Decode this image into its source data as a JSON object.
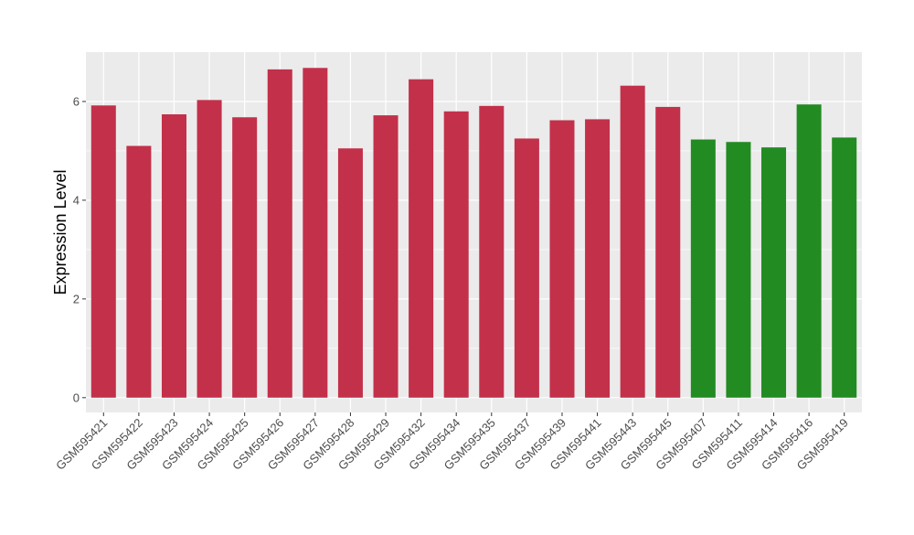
{
  "chart_data": {
    "type": "bar",
    "title": "",
    "xlabel": "",
    "ylabel": "Expression Level",
    "ylim": [
      -0.3,
      7.0
    ],
    "yticks": [
      0,
      2,
      4,
      6
    ],
    "yticks_minor": [
      1,
      3,
      5
    ],
    "grid": true,
    "legend": "none",
    "categories": [
      "GSM595421",
      "GSM595422",
      "GSM595423",
      "GSM595424",
      "GSM595425",
      "GSM595426",
      "GSM595427",
      "GSM595428",
      "GSM595429",
      "GSM595432",
      "GSM595434",
      "GSM595435",
      "GSM595437",
      "GSM595439",
      "GSM595441",
      "GSM595443",
      "GSM595445",
      "GSM595407",
      "GSM595411",
      "GSM595414",
      "GSM595416",
      "GSM595419"
    ],
    "values": [
      5.92,
      5.1,
      5.74,
      6.03,
      5.68,
      6.65,
      6.68,
      5.05,
      5.72,
      6.45,
      5.8,
      5.91,
      5.25,
      5.62,
      5.64,
      6.32,
      5.89,
      5.23,
      5.18,
      5.07,
      5.94,
      5.27
    ],
    "bar_colors": [
      "#c3304a",
      "#c3304a",
      "#c3304a",
      "#c3304a",
      "#c3304a",
      "#c3304a",
      "#c3304a",
      "#c3304a",
      "#c3304a",
      "#c3304a",
      "#c3304a",
      "#c3304a",
      "#c3304a",
      "#c3304a",
      "#c3304a",
      "#c3304a",
      "#c3304a",
      "#228b22",
      "#228b22",
      "#228b22",
      "#228b22",
      "#228b22"
    ],
    "panel_background": "#ebebeb",
    "grid_color": "#ffffff"
  }
}
